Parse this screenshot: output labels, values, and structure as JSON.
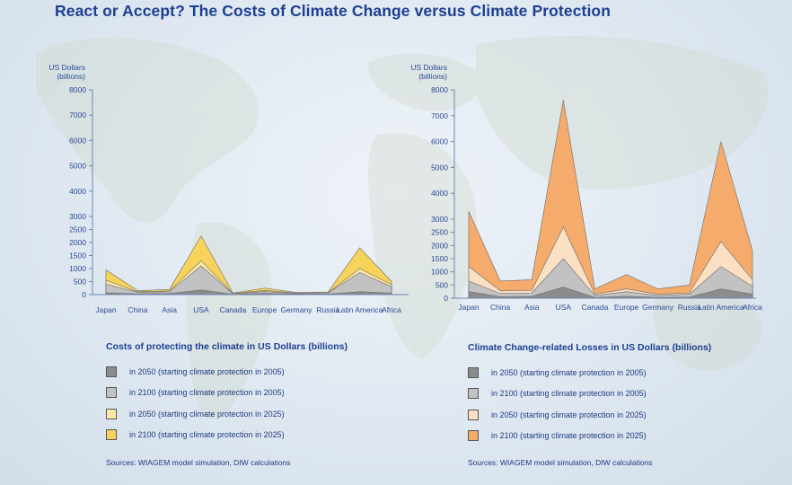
{
  "page": {
    "title": "React or Accept? The Costs of Climate Change versus Climate Protection"
  },
  "colors": {
    "s2050_2005": "#8c8c8c",
    "s2100_2005": "#c2c2c2",
    "s2050_2025": "#fbe7a7",
    "s2100_2025_left": "#f7d35b",
    "s2100_2025_right": "#f4ab6c",
    "axis": "#6f84b4"
  },
  "chart_data": [
    {
      "type": "area",
      "title": "Costs of protecting the climate in US Dollars (billions)",
      "ylabel": "US Dollars (billions)",
      "ylim": [
        0,
        8000
      ],
      "yticks": [
        0,
        500,
        1000,
        1500,
        2000,
        2500,
        3000,
        4000,
        5000,
        6000,
        7000,
        8000
      ],
      "categories": [
        "Japan",
        "China",
        "Asia",
        "USA",
        "Canada",
        "Europe",
        "Germany",
        "Russia",
        "Latin America",
        "Africa"
      ],
      "series": [
        {
          "name": "in 2100 (starting climate protection in 2025)",
          "color": "#f7d35b",
          "values": [
            950,
            150,
            200,
            2250,
            60,
            250,
            80,
            100,
            1800,
            500
          ]
        },
        {
          "name": "in 2050 (starting climate protection in 2025)",
          "color": "#fbe7a7",
          "values": [
            550,
            110,
            140,
            1300,
            45,
            160,
            60,
            70,
            1000,
            380
          ]
        },
        {
          "name": "in 2100 (starting climate protection in 2005)",
          "color": "#c2c2c2",
          "values": [
            400,
            90,
            110,
            1100,
            35,
            120,
            50,
            60,
            850,
            300
          ]
        },
        {
          "name": "in 2050 (starting climate protection in 2005)",
          "color": "#8c8c8c",
          "values": [
            70,
            30,
            40,
            180,
            10,
            50,
            20,
            20,
            110,
            60
          ]
        }
      ],
      "legend": [
        {
          "label": "in 2050 (starting climate protection in 2005)",
          "color": "#8c8c8c"
        },
        {
          "label": "in 2100 (starting climate protection in 2005)",
          "color": "#c2c2c2"
        },
        {
          "label": "in 2050 (starting climate protection in 2025)",
          "color": "#fbe7a7"
        },
        {
          "label": "in 2100 (starting climate protection in 2025)",
          "color": "#f7d35b"
        }
      ],
      "source": "Sources: WIAGEM model simulation, DIW calculations"
    },
    {
      "type": "area",
      "title": "Climate Change-related Losses in US Dollars (billions)",
      "ylabel": "US Dollars (billions)",
      "ylim": [
        0,
        8000
      ],
      "yticks": [
        0,
        500,
        1000,
        1500,
        2000,
        2500,
        3000,
        4000,
        5000,
        6000,
        7000,
        8000
      ],
      "categories": [
        "Japan",
        "China",
        "Asia",
        "USA",
        "Canada",
        "Europe",
        "Germany",
        "Russia",
        "Latin America",
        "Africa"
      ],
      "series": [
        {
          "name": "in 2100 (starting climate protection in 2025)",
          "color": "#f4ab6c",
          "values": [
            3300,
            650,
            700,
            7600,
            350,
            900,
            350,
            500,
            6000,
            1800
          ]
        },
        {
          "name": "in 2050 (starting climate protection in 2025)",
          "color": "#fbe0c4",
          "values": [
            1200,
            280,
            300,
            2700,
            150,
            350,
            150,
            200,
            2150,
            700
          ]
        },
        {
          "name": "in 2100 (starting climate protection in 2005)",
          "color": "#c2c2c2",
          "values": [
            650,
            180,
            200,
            1500,
            100,
            250,
            100,
            150,
            1200,
            450
          ]
        },
        {
          "name": "in 2050 (starting climate protection in 2005)",
          "color": "#8c8c8c",
          "values": [
            250,
            60,
            70,
            420,
            30,
            70,
            30,
            40,
            350,
            150
          ]
        }
      ],
      "legend": [
        {
          "label": "in 2050 (starting climate protection in 2005)",
          "color": "#8c8c8c"
        },
        {
          "label": "in 2100 (starting climate protection in 2005)",
          "color": "#c2c2c2"
        },
        {
          "label": "in 2050 (starting climate protection in 2025)",
          "color": "#fbe0c4"
        },
        {
          "label": "in 2100 (starting climate protection in 2025)",
          "color": "#f4ab6c"
        }
      ],
      "source": "Sources: WIAGEM model simulation, DIW calculations"
    }
  ]
}
